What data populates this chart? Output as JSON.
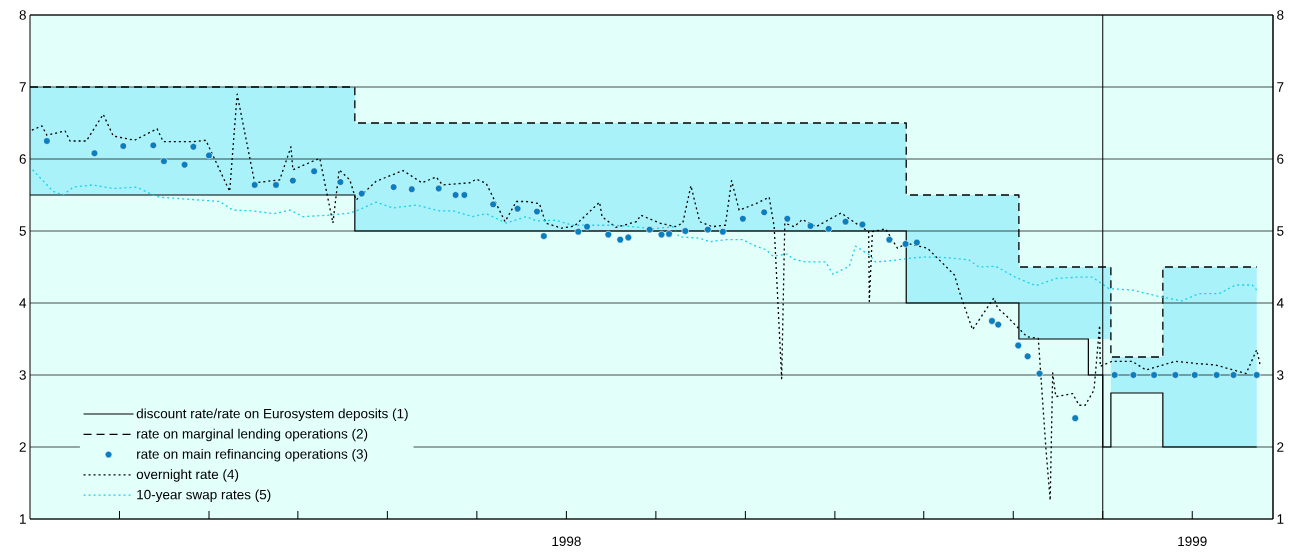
{
  "chart_data": {
    "type": "line",
    "xlim": [
      1997.143,
      1999.129
    ],
    "xticks": [
      {
        "value": 1997.286,
        "label": null
      },
      {
        "value": 1997.429,
        "label": null
      },
      {
        "value": 1997.571,
        "label": null
      },
      {
        "value": 1997.714,
        "label": null
      },
      {
        "value": 1997.857,
        "label": null
      },
      1998,
      {
        "value": 1998.143,
        "label": null
      },
      {
        "value": 1998.286,
        "label": null
      },
      {
        "value": 1998.429,
        "label": null
      },
      {
        "value": 1998.571,
        "label": null
      },
      {
        "value": 1998.714,
        "label": null
      },
      {
        "value": 1998.857,
        "label": null
      },
      1999
    ],
    "ylim": [
      1,
      8
    ],
    "yticks": [
      1,
      2,
      3,
      4,
      5,
      6,
      7,
      8
    ],
    "y2lim": [
      1,
      8
    ],
    "y2ticks": [
      1,
      2,
      3,
      4,
      5,
      6,
      7,
      8
    ],
    "grid": "y",
    "legend": "bottom left",
    "ref_lines": [
      {
        "axis": "x",
        "value": 1998.857,
        "color": "#000000"
      }
    ],
    "series": [
      {
        "type": "step",
        "name": "discount rate/rate on Eurosystem deposits (1)",
        "color": "#000000",
        "line_style": "solid",
        "x": [
          1997.143,
          1997.662,
          1998.543,
          1998.723,
          1998.834,
          1998.857,
          1998.87,
          1998.953,
          1999.103
        ],
        "values": [
          5.5,
          5,
          4,
          3.5,
          3,
          2,
          2.75,
          2,
          2
        ]
      },
      {
        "name": "rate on marginal lending operations (2)",
        "color": "#000000",
        "line_style": "dashed",
        "x": [
          1997.143,
          1997.662,
          1997.662,
          1998.543,
          1998.543,
          1998.723,
          1998.723,
          1998.87,
          1998.87,
          1998.953,
          1998.953,
          1999.103
        ],
        "values": [
          7,
          7,
          6.5,
          6.5,
          5.5,
          5.5,
          4.5,
          4.5,
          3.25,
          3.25,
          4.5,
          4.5
        ],
        "upper": [
          7,
          7,
          6.5,
          6.5,
          5.5,
          5.5,
          4.5,
          4.5,
          3.25,
          3.25,
          4.5,
          4.5
        ],
        "lower": [
          5.5,
          5.5,
          5,
          5,
          4,
          4,
          3.5,
          3.5,
          2.75,
          2.75,
          2,
          2
        ]
      },
      {
        "type": "scatter",
        "name": "rate on main refinancing operations (3)",
        "color": "#0a7fc0",
        "marker": "circle",
        "x": [
          1997.17,
          1997.246,
          1997.292,
          1997.34,
          1997.357,
          1997.39,
          1997.404,
          1997.429,
          1997.502,
          1997.536,
          1997.563,
          1997.597,
          1997.639,
          1997.673,
          1997.724,
          1997.753,
          1997.796,
          1997.823,
          1997.837,
          1997.883,
          1997.922,
          1997.953,
          1997.964,
          1998.019,
          1998.033,
          1998.067,
          1998.086,
          1998.099,
          1998.133,
          1998.152,
          1998.164,
          1998.19,
          1998.226,
          1998.25,
          1998.282,
          1998.316,
          1998.353,
          1998.39,
          1998.419,
          1998.446,
          1998.473,
          1998.516,
          1998.542,
          1998.56,
          1998.68,
          1998.69,
          1998.722,
          1998.737,
          1998.756,
          1998.813,
          1998.876,
          1998.906,
          1998.939,
          1998.973,
          1999.004,
          1999.039,
          1999.066,
          1999.103
        ],
        "values": [
          6.25,
          6.08,
          6.18,
          6.19,
          5.97,
          5.92,
          6.17,
          6.05,
          5.64,
          5.64,
          5.7,
          5.83,
          5.68,
          5.52,
          5.61,
          5.58,
          5.59,
          5.5,
          5.5,
          5.37,
          5.31,
          5.27,
          4.93,
          4.99,
          5.06,
          4.95,
          4.88,
          4.91,
          5.02,
          4.95,
          4.96,
          5.0,
          5.02,
          4.99,
          5.17,
          5.26,
          5.17,
          5.07,
          5.03,
          5.13,
          5.09,
          4.88,
          4.82,
          4.84,
          3.75,
          3.7,
          3.41,
          3.26,
          3.02,
          2.4,
          3,
          3,
          3,
          3,
          3,
          3,
          3,
          3
        ]
      },
      {
        "name": "overnight rate (4)",
        "color": "#000000",
        "line_style": "dotted",
        "x": [
          1997.146,
          1997.162,
          1997.17,
          1997.199,
          1997.207,
          1997.233,
          1997.26,
          1997.276,
          1997.31,
          1997.346,
          1997.356,
          1997.403,
          1997.424,
          1997.462,
          1997.474,
          1997.502,
          1997.542,
          1997.56,
          1997.563,
          1997.606,
          1997.627,
          1997.637,
          1997.654,
          1997.664,
          1997.696,
          1997.739,
          1997.769,
          1997.792,
          1997.802,
          1997.846,
          1997.856,
          1997.872,
          1997.902,
          1997.92,
          1997.936,
          1997.957,
          1997.967,
          1997.992,
          1998.013,
          1998.053,
          1998.057,
          1998.079,
          1998.112,
          1998.119,
          1998.149,
          1998.174,
          1998.186,
          1998.199,
          1998.213,
          1998.233,
          1998.254,
          1998.264,
          1998.276,
          1998.303,
          1998.324,
          1998.332,
          1998.344,
          1998.349,
          1998.364,
          1998.377,
          1998.399,
          1998.439,
          1998.467,
          1998.483,
          1998.484,
          1998.489,
          1998.51,
          1998.529,
          1998.544,
          1998.577,
          1998.62,
          1998.63,
          1998.649,
          1998.659,
          1998.683,
          1998.689,
          1998.702,
          1998.736,
          1998.754,
          1998.766,
          1998.773,
          1998.777,
          1998.782,
          1998.809,
          1998.819,
          1998.829,
          1998.843,
          1998.852,
          1998.853,
          1998.872,
          1998.904,
          1998.926,
          1998.973,
          1999.006,
          1999.037,
          1999.086,
          1999.103,
          1999.109
        ],
        "values": [
          6.4,
          6.46,
          6.33,
          6.39,
          6.25,
          6.25,
          6.62,
          6.32,
          6.26,
          6.42,
          6.24,
          6.24,
          6.26,
          5.55,
          6.9,
          5.67,
          5.71,
          6.17,
          5.85,
          6.01,
          5.11,
          5.85,
          5.71,
          5.43,
          5.69,
          5.84,
          5.67,
          5.75,
          5.64,
          5.67,
          5.72,
          5.66,
          5.13,
          5.41,
          5.41,
          5.38,
          5.11,
          5.04,
          5.07,
          5.4,
          5.2,
          5.05,
          5.13,
          5.22,
          5.11,
          5.06,
          5.11,
          5.63,
          5.13,
          5.06,
          5.08,
          5.7,
          5.29,
          5.38,
          5.47,
          5.06,
          2.95,
          5.11,
          5.06,
          5.16,
          5.06,
          5.25,
          5.08,
          4.99,
          4.02,
          4.99,
          5.03,
          4.76,
          4.83,
          4.76,
          4.39,
          4.1,
          3.63,
          3.76,
          4.07,
          3.93,
          3.83,
          3.53,
          3.51,
          2.0,
          1.26,
          3.03,
          2.7,
          2.74,
          2.58,
          2.58,
          2.79,
          3.69,
          3.12,
          3.19,
          3.19,
          3.07,
          3.19,
          3.16,
          3.14,
          3.02,
          3.35,
          3.12
        ]
      },
      {
        "name": "10-year swap rates (5)",
        "color": "#17d0ee",
        "line_style": "dotted",
        "x": [
          1997.147,
          1997.18,
          1997.196,
          1997.212,
          1997.243,
          1997.276,
          1997.314,
          1997.339,
          1997.35,
          1997.414,
          1997.446,
          1997.467,
          1997.499,
          1997.532,
          1997.559,
          1997.579,
          1997.622,
          1997.654,
          1997.67,
          1997.696,
          1997.723,
          1997.76,
          1997.797,
          1997.819,
          1997.85,
          1997.872,
          1997.904,
          1997.936,
          1997.952,
          1997.983,
          1998.01,
          1998.042,
          1998.074,
          1998.096,
          1998.137,
          1998.17,
          1998.18,
          1998.213,
          1998.229,
          1998.254,
          1998.282,
          1998.297,
          1998.319,
          1998.33,
          1998.353,
          1998.362,
          1998.383,
          1998.414,
          1998.426,
          1998.452,
          1998.462,
          1998.484,
          1998.494,
          1998.522,
          1998.547,
          1998.574,
          1998.606,
          1998.643,
          1998.659,
          1998.686,
          1998.717,
          1998.75,
          1998.782,
          1998.819,
          1998.84,
          1998.867,
          1998.904,
          1998.947,
          1998.984,
          1999.01,
          1999.043,
          1999.069,
          1999.096,
          1999.103
        ],
        "values": [
          5.85,
          5.55,
          5.5,
          5.61,
          5.64,
          5.59,
          5.61,
          5.5,
          5.47,
          5.43,
          5.41,
          5.29,
          5.28,
          5.24,
          5.29,
          5.2,
          5.22,
          5.25,
          5.3,
          5.4,
          5.32,
          5.36,
          5.28,
          5.28,
          5.2,
          5.24,
          5.11,
          5.2,
          5.14,
          5.15,
          5.08,
          5.08,
          5.08,
          5.07,
          5.03,
          5.06,
          4.92,
          4.9,
          4.85,
          4.88,
          4.88,
          4.81,
          4.74,
          4.65,
          4.68,
          4.61,
          4.57,
          4.57,
          4.4,
          4.51,
          4.79,
          4.67,
          4.57,
          4.59,
          4.62,
          4.64,
          4.63,
          4.6,
          4.5,
          4.51,
          4.36,
          4.24,
          4.34,
          4.36,
          4.36,
          4.2,
          4.18,
          4.09,
          4.03,
          4.13,
          4.13,
          4.25,
          4.25,
          4.18
        ]
      }
    ]
  }
}
